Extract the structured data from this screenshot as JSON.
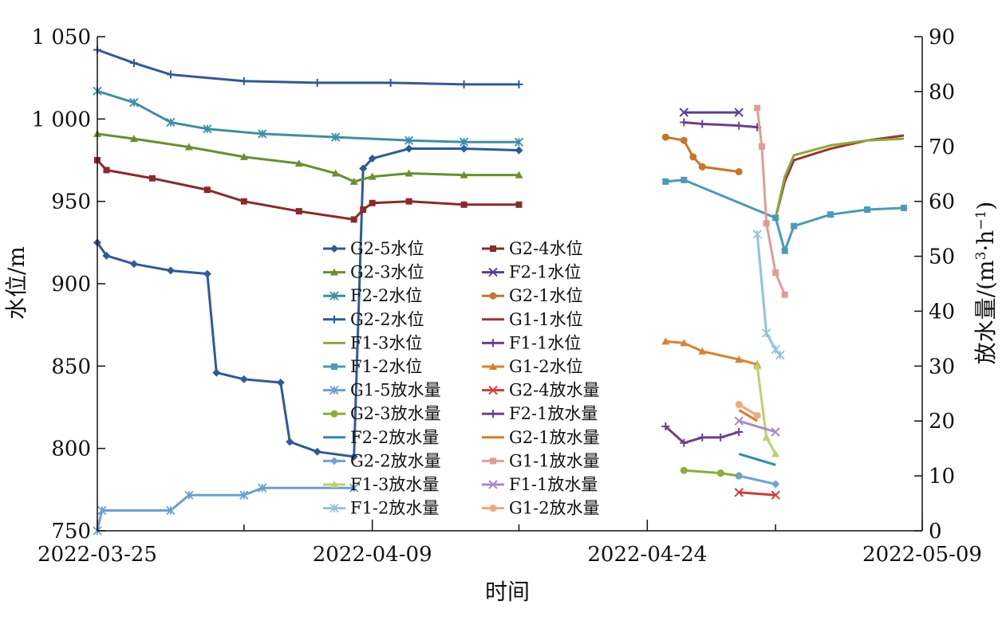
{
  "chart_data": {
    "type": "line",
    "xlabel": "时间",
    "ylabel_left": "水位/m",
    "ylabel_right_parts": [
      "放水量/(m",
      "3",
      "·h",
      "−1",
      ")"
    ],
    "x_range": [
      "2022-03-25",
      "2022-05-09"
    ],
    "x_ticks": [
      "2022-03-25",
      "2022-04-09",
      "2022-04-24",
      "2022-05-09"
    ],
    "y_left_range": [
      750,
      1050
    ],
    "y_left_ticks": [
      750,
      800,
      850,
      900,
      950,
      1000,
      1050
    ],
    "y_left_tick_labels": [
      "750",
      "800",
      "850",
      "900",
      "950",
      "1 000",
      "1 050"
    ],
    "y_right_range": [
      0,
      90
    ],
    "y_right_ticks": [
      0,
      10,
      20,
      30,
      40,
      50,
      60,
      70,
      80,
      90
    ],
    "grid": false,
    "legend_position": "center",
    "series": [
      {
        "name": "G2-5水位",
        "axis": "left",
        "color": "#2f5a9a",
        "marker": "diamond",
        "points": [
          [
            "2022-03-25",
            925
          ],
          [
            "2022-03-25T12",
            917
          ],
          [
            "2022-03-27",
            912
          ],
          [
            "2022-03-29",
            908
          ],
          [
            "2022-03-31",
            906
          ],
          [
            "2022-03-31T12",
            846
          ],
          [
            "2022-04-02",
            842
          ],
          [
            "2022-04-04",
            840
          ],
          [
            "2022-04-04T12",
            804
          ],
          [
            "2022-04-06",
            798
          ],
          [
            "2022-04-08",
            795
          ],
          [
            "2022-04-08T12",
            970
          ],
          [
            "2022-04-09",
            976
          ],
          [
            "2022-04-11",
            982
          ],
          [
            "2022-04-14",
            982
          ],
          [
            "2022-04-17",
            981
          ]
        ]
      },
      {
        "name": "G2-4水位",
        "axis": "left",
        "color": "#8b2a2a",
        "marker": "square",
        "points": [
          [
            "2022-03-25",
            975
          ],
          [
            "2022-03-25T12",
            969
          ],
          [
            "2022-03-28",
            964
          ],
          [
            "2022-03-31",
            957
          ],
          [
            "2022-04-02",
            950
          ],
          [
            "2022-04-05",
            944
          ],
          [
            "2022-04-08",
            939
          ],
          [
            "2022-04-08T12",
            945
          ],
          [
            "2022-04-09",
            949
          ],
          [
            "2022-04-11",
            950
          ],
          [
            "2022-04-14",
            948
          ],
          [
            "2022-04-17",
            948
          ]
        ]
      },
      {
        "name": "G2-3水位",
        "axis": "left",
        "color": "#6a8f2e",
        "marker": "triangle",
        "points": [
          [
            "2022-03-25",
            991
          ],
          [
            "2022-03-27",
            988
          ],
          [
            "2022-03-30",
            983
          ],
          [
            "2022-04-02",
            977
          ],
          [
            "2022-04-05",
            973
          ],
          [
            "2022-04-07",
            967
          ],
          [
            "2022-04-08",
            962
          ],
          [
            "2022-04-09",
            965
          ],
          [
            "2022-04-11",
            967
          ],
          [
            "2022-04-14",
            966
          ],
          [
            "2022-04-17",
            966
          ]
        ]
      },
      {
        "name": "F2-1水位",
        "axis": "left",
        "color": "#5c3d8a",
        "marker": "x",
        "points": [
          [
            "2022-04-26",
            1004
          ],
          [
            "2022-04-29",
            1004
          ]
        ]
      },
      {
        "name": "F2-2水位",
        "axis": "left",
        "color": "#3b8fa8",
        "marker": "star",
        "points": [
          [
            "2022-03-25",
            1017
          ],
          [
            "2022-03-27",
            1010
          ],
          [
            "2022-03-29",
            998
          ],
          [
            "2022-03-31",
            994
          ],
          [
            "2022-04-03",
            991
          ],
          [
            "2022-04-07",
            989
          ],
          [
            "2022-04-11",
            987
          ],
          [
            "2022-04-14",
            986
          ],
          [
            "2022-04-17",
            986
          ]
        ]
      },
      {
        "name": "G2-1水位",
        "axis": "left",
        "color": "#c8752a",
        "marker": "circle",
        "points": [
          [
            "2022-04-25",
            989
          ],
          [
            "2022-04-26",
            987
          ],
          [
            "2022-04-26T12",
            977
          ],
          [
            "2022-04-27",
            971
          ],
          [
            "2022-04-29",
            968
          ]
        ]
      },
      {
        "name": "G2-2水位",
        "axis": "left",
        "color": "#2f5a9a",
        "marker": "plus",
        "points": [
          [
            "2022-03-25",
            1042
          ],
          [
            "2022-03-27",
            1034
          ],
          [
            "2022-03-29",
            1027
          ],
          [
            "2022-04-02",
            1023
          ],
          [
            "2022-04-06",
            1022
          ],
          [
            "2022-04-10",
            1022
          ],
          [
            "2022-04-14",
            1021
          ],
          [
            "2022-04-17",
            1021
          ]
        ]
      },
      {
        "name": "G1-1水位",
        "axis": "left",
        "color": "#a0342e",
        "marker": "none",
        "points": [
          [
            "2022-05-01",
            940
          ],
          [
            "2022-05-01T12",
            962
          ],
          [
            "2022-05-02",
            975
          ],
          [
            "2022-05-04",
            982
          ],
          [
            "2022-05-06",
            987
          ],
          [
            "2022-05-08",
            990
          ]
        ]
      },
      {
        "name": "F1-3水位",
        "axis": "left",
        "color": "#8aab3a",
        "marker": "none",
        "points": [
          [
            "2022-05-01",
            940
          ],
          [
            "2022-05-01T12",
            965
          ],
          [
            "2022-05-02",
            978
          ],
          [
            "2022-05-04",
            984
          ],
          [
            "2022-05-06",
            987
          ],
          [
            "2022-05-08",
            988
          ]
        ]
      },
      {
        "name": "F1-1水位",
        "axis": "left",
        "color": "#6a3f8f",
        "marker": "plus",
        "points": [
          [
            "2022-04-26",
            998
          ],
          [
            "2022-04-27",
            997
          ],
          [
            "2022-04-29",
            996
          ],
          [
            "2022-04-30",
            995
          ]
        ]
      },
      {
        "name": "F1-2水位",
        "axis": "left",
        "color": "#4a9bb8",
        "marker": "square",
        "points": [
          [
            "2022-04-25",
            962
          ],
          [
            "2022-04-26",
            963
          ],
          [
            "2022-05-01",
            940
          ],
          [
            "2022-05-01T12",
            920
          ],
          [
            "2022-05-02",
            935
          ],
          [
            "2022-05-04",
            942
          ],
          [
            "2022-05-06",
            945
          ],
          [
            "2022-05-08",
            946
          ]
        ]
      },
      {
        "name": "G1-2水位",
        "axis": "left",
        "color": "#d9822b",
        "marker": "triangle",
        "points": [
          [
            "2022-04-25",
            865
          ],
          [
            "2022-04-26",
            864
          ],
          [
            "2022-04-27",
            859
          ],
          [
            "2022-04-29",
            854
          ],
          [
            "2022-04-30",
            851
          ]
        ]
      },
      {
        "name": "G1-5放水量",
        "axis": "right",
        "color": "#6a9fd4",
        "marker": "star",
        "points": [
          [
            "2022-03-25",
            0
          ],
          [
            "2022-03-25T06",
            3.7
          ],
          [
            "2022-03-29",
            3.7
          ],
          [
            "2022-03-30",
            6.5
          ],
          [
            "2022-04-02",
            6.5
          ],
          [
            "2022-04-03",
            7.8
          ],
          [
            "2022-04-08",
            7.8
          ]
        ]
      },
      {
        "name": "G2-4放水量",
        "axis": "right",
        "color": "#d43a3a",
        "marker": "x",
        "points": [
          [
            "2022-04-29",
            7
          ],
          [
            "2022-05-01",
            6.5
          ]
        ]
      },
      {
        "name": "G2-3放水量",
        "axis": "right",
        "color": "#8aab3a",
        "marker": "circle",
        "points": [
          [
            "2022-04-26",
            11
          ],
          [
            "2022-04-28",
            10.5
          ],
          [
            "2022-04-29",
            10
          ]
        ]
      },
      {
        "name": "F2-1放水量",
        "axis": "right",
        "color": "#6a3f8f",
        "marker": "plus",
        "points": [
          [
            "2022-04-25",
            19
          ],
          [
            "2022-04-26",
            16
          ],
          [
            "2022-04-27",
            17
          ],
          [
            "2022-04-28",
            17
          ],
          [
            "2022-04-29",
            18
          ]
        ]
      },
      {
        "name": "F2-2放水量",
        "axis": "right",
        "color": "#2e8ab8",
        "marker": "none",
        "points": [
          [
            "2022-04-29",
            14
          ],
          [
            "2022-05-01",
            12
          ]
        ]
      },
      {
        "name": "G2-1放水量",
        "axis": "right",
        "color": "#e07b20",
        "marker": "none",
        "points": [
          [
            "2022-04-29",
            22
          ],
          [
            "2022-04-30",
            20
          ]
        ]
      },
      {
        "name": "G2-2放水量",
        "axis": "right",
        "color": "#6fa0d8",
        "marker": "diamond",
        "points": [
          [
            "2022-04-29",
            10
          ],
          [
            "2022-05-01",
            8.5
          ]
        ]
      },
      {
        "name": "G1-1放水量",
        "axis": "right",
        "color": "#e49a9a",
        "marker": "square",
        "points": [
          [
            "2022-04-30",
            77
          ],
          [
            "2022-04-30T06",
            70
          ],
          [
            "2022-04-30T12",
            56
          ],
          [
            "2022-05-01",
            47
          ],
          [
            "2022-05-01T12",
            43
          ]
        ]
      },
      {
        "name": "F1-3放水量",
        "axis": "right",
        "color": "#b7d36c",
        "marker": "triangle",
        "points": [
          [
            "2022-04-30",
            30
          ],
          [
            "2022-04-30T12",
            17
          ],
          [
            "2022-05-01",
            14
          ]
        ]
      },
      {
        "name": "F1-1放水量",
        "axis": "right",
        "color": "#a98ac8",
        "marker": "x",
        "points": [
          [
            "2022-04-29",
            20
          ],
          [
            "2022-05-01",
            18
          ]
        ]
      },
      {
        "name": "F1-2放水量",
        "axis": "right",
        "color": "#8ec4e0",
        "marker": "star",
        "points": [
          [
            "2022-04-30",
            54
          ],
          [
            "2022-04-30T12",
            36
          ],
          [
            "2022-05-01",
            33
          ],
          [
            "2022-05-01T06",
            32
          ]
        ]
      },
      {
        "name": "G1-2放水量",
        "axis": "right",
        "color": "#f2a77a",
        "marker": "circle",
        "points": [
          [
            "2022-04-29",
            23
          ],
          [
            "2022-04-30",
            21
          ]
        ]
      }
    ]
  }
}
